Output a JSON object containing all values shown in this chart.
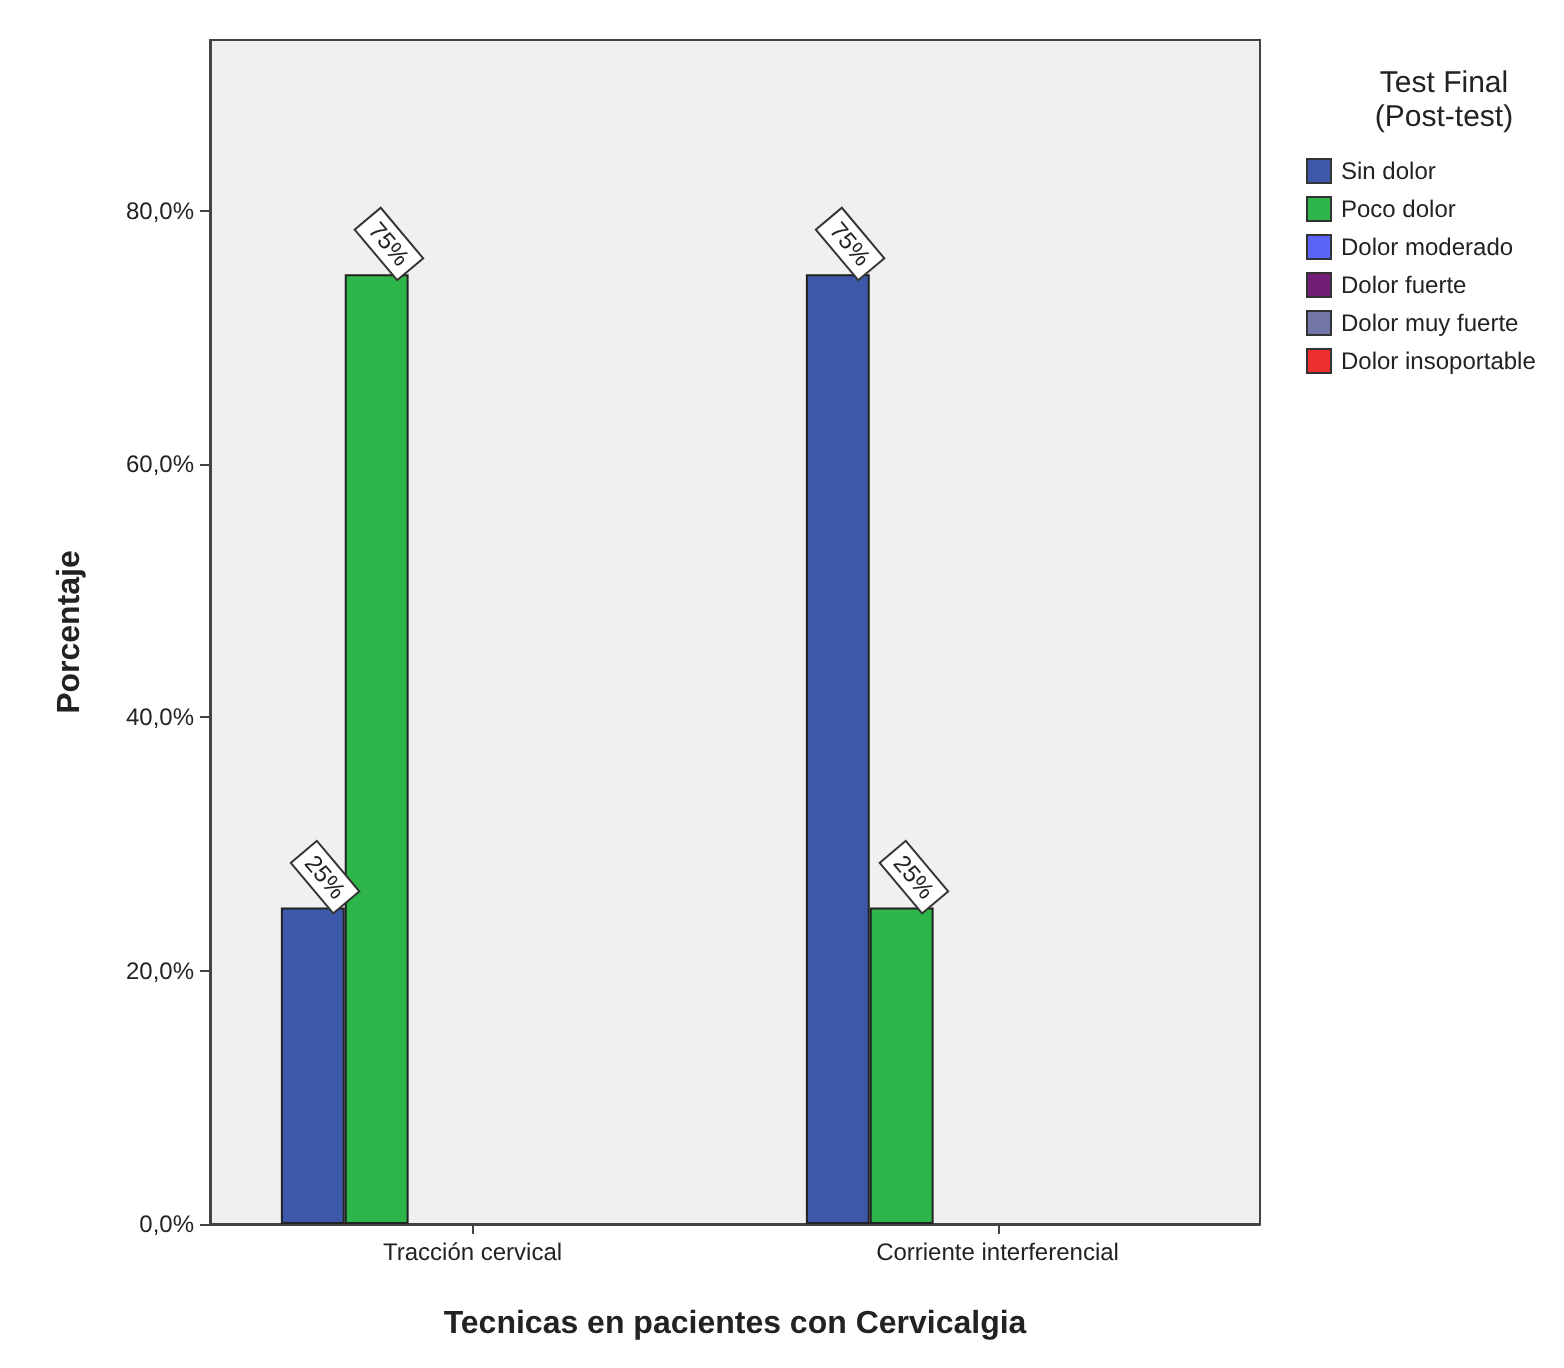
{
  "chart_data": {
    "type": "bar",
    "xlabel": "Tecnicas en pacientes con Cervicalgia",
    "ylabel": "Porcentaje",
    "legend_title": "Test Final\n(Post-test)",
    "legend": "right",
    "grid": false,
    "categories": [
      "Tracción cervical",
      "Corriente interferencial"
    ],
    "ylim": [
      0,
      93.5
    ],
    "yticks": [
      {
        "value": 0,
        "label": "0,0%"
      },
      {
        "value": 20,
        "label": "20,0%"
      },
      {
        "value": 40,
        "label": "40,0%"
      },
      {
        "value": 60,
        "label": "60,0%"
      },
      {
        "value": 80,
        "label": "80,0%"
      }
    ],
    "series": [
      {
        "name": "Sin dolor",
        "color": "#3e58a9",
        "values": [
          25,
          75
        ],
        "value_labels": [
          "25%",
          "75%"
        ]
      },
      {
        "name": "Poco dolor",
        "color": "#2fb64a",
        "values": [
          75,
          25
        ],
        "value_labels": [
          "75%",
          "25%"
        ]
      },
      {
        "name": "Dolor moderado",
        "color": "#5a64f6",
        "values": [
          null,
          null
        ]
      },
      {
        "name": "Dolor fuerte",
        "color": "#731d77",
        "values": [
          null,
          null
        ]
      },
      {
        "name": "Dolor muy fuerte",
        "color": "#7277a8",
        "values": [
          null,
          null
        ]
      },
      {
        "name": "Dolor insoportable",
        "color": "#ee2f30",
        "values": [
          null,
          null
        ]
      }
    ]
  }
}
